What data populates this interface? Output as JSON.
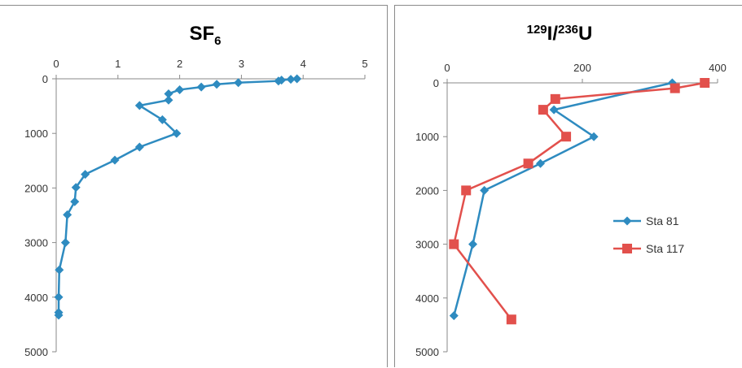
{
  "chart_data": [
    {
      "type": "line",
      "title": "SF",
      "title_sub": "6",
      "x_ticks": [
        "0",
        "1",
        "2",
        "3",
        "4",
        "5"
      ],
      "y_ticks": [
        "0",
        "1000",
        "2000",
        "3000",
        "4000",
        "5000"
      ],
      "xlim": [
        0,
        5
      ],
      "ylim": [
        0,
        5000
      ],
      "y_inverted": true,
      "x_axis_position": "top",
      "grid": false,
      "series": [
        {
          "color": "#2e8bc0",
          "marker": "diamond",
          "points": [
            [
              3.9,
              0
            ],
            [
              3.8,
              10
            ],
            [
              3.65,
              25
            ],
            [
              3.6,
              40
            ],
            [
              2.95,
              70
            ],
            [
              2.6,
              100
            ],
            [
              2.35,
              150
            ],
            [
              2.0,
              200
            ],
            [
              1.82,
              275
            ],
            [
              1.82,
              390
            ],
            [
              1.35,
              490
            ],
            [
              1.72,
              750
            ],
            [
              1.95,
              1000
            ],
            [
              1.35,
              1250
            ],
            [
              0.95,
              1490
            ],
            [
              0.47,
              1750
            ],
            [
              0.32,
              1990
            ],
            [
              0.3,
              2250
            ],
            [
              0.18,
              2490
            ],
            [
              0.15,
              3000
            ],
            [
              0.05,
              3500
            ],
            [
              0.04,
              4000
            ],
            [
              0.04,
              4280
            ],
            [
              0.04,
              4330
            ]
          ]
        }
      ]
    },
    {
      "type": "line",
      "title_pre_sup": "129",
      "title_mid": "I/",
      "title_mid_sup": "236",
      "title_post": "U",
      "x_ticks": [
        "0",
        "200",
        "400"
      ],
      "y_ticks": [
        "0",
        "1000",
        "2000",
        "3000",
        "4000",
        "5000"
      ],
      "xlim": [
        0,
        400
      ],
      "ylim": [
        0,
        5000
      ],
      "y_inverted": true,
      "x_axis_position": "top",
      "grid": false,
      "legend_position": "right",
      "series": [
        {
          "name": "Sta 81",
          "color": "#2e8bc0",
          "marker": "diamond",
          "points": [
            [
              333,
              0
            ],
            [
              158,
              500
            ],
            [
              217,
              1000
            ],
            [
              138,
              1500
            ],
            [
              55,
              2000
            ],
            [
              38,
              3000
            ],
            [
              10,
              4330
            ]
          ]
        },
        {
          "name": "Sta 117",
          "color": "#e2504c",
          "marker": "square",
          "points": [
            [
              381,
              0
            ],
            [
              337,
              100
            ],
            [
              160,
              300
            ],
            [
              142,
              500
            ],
            [
              176,
              1000
            ],
            [
              120,
              1500
            ],
            [
              28,
              2000
            ],
            [
              10,
              3000
            ],
            [
              95,
              4400
            ]
          ]
        }
      ]
    }
  ]
}
